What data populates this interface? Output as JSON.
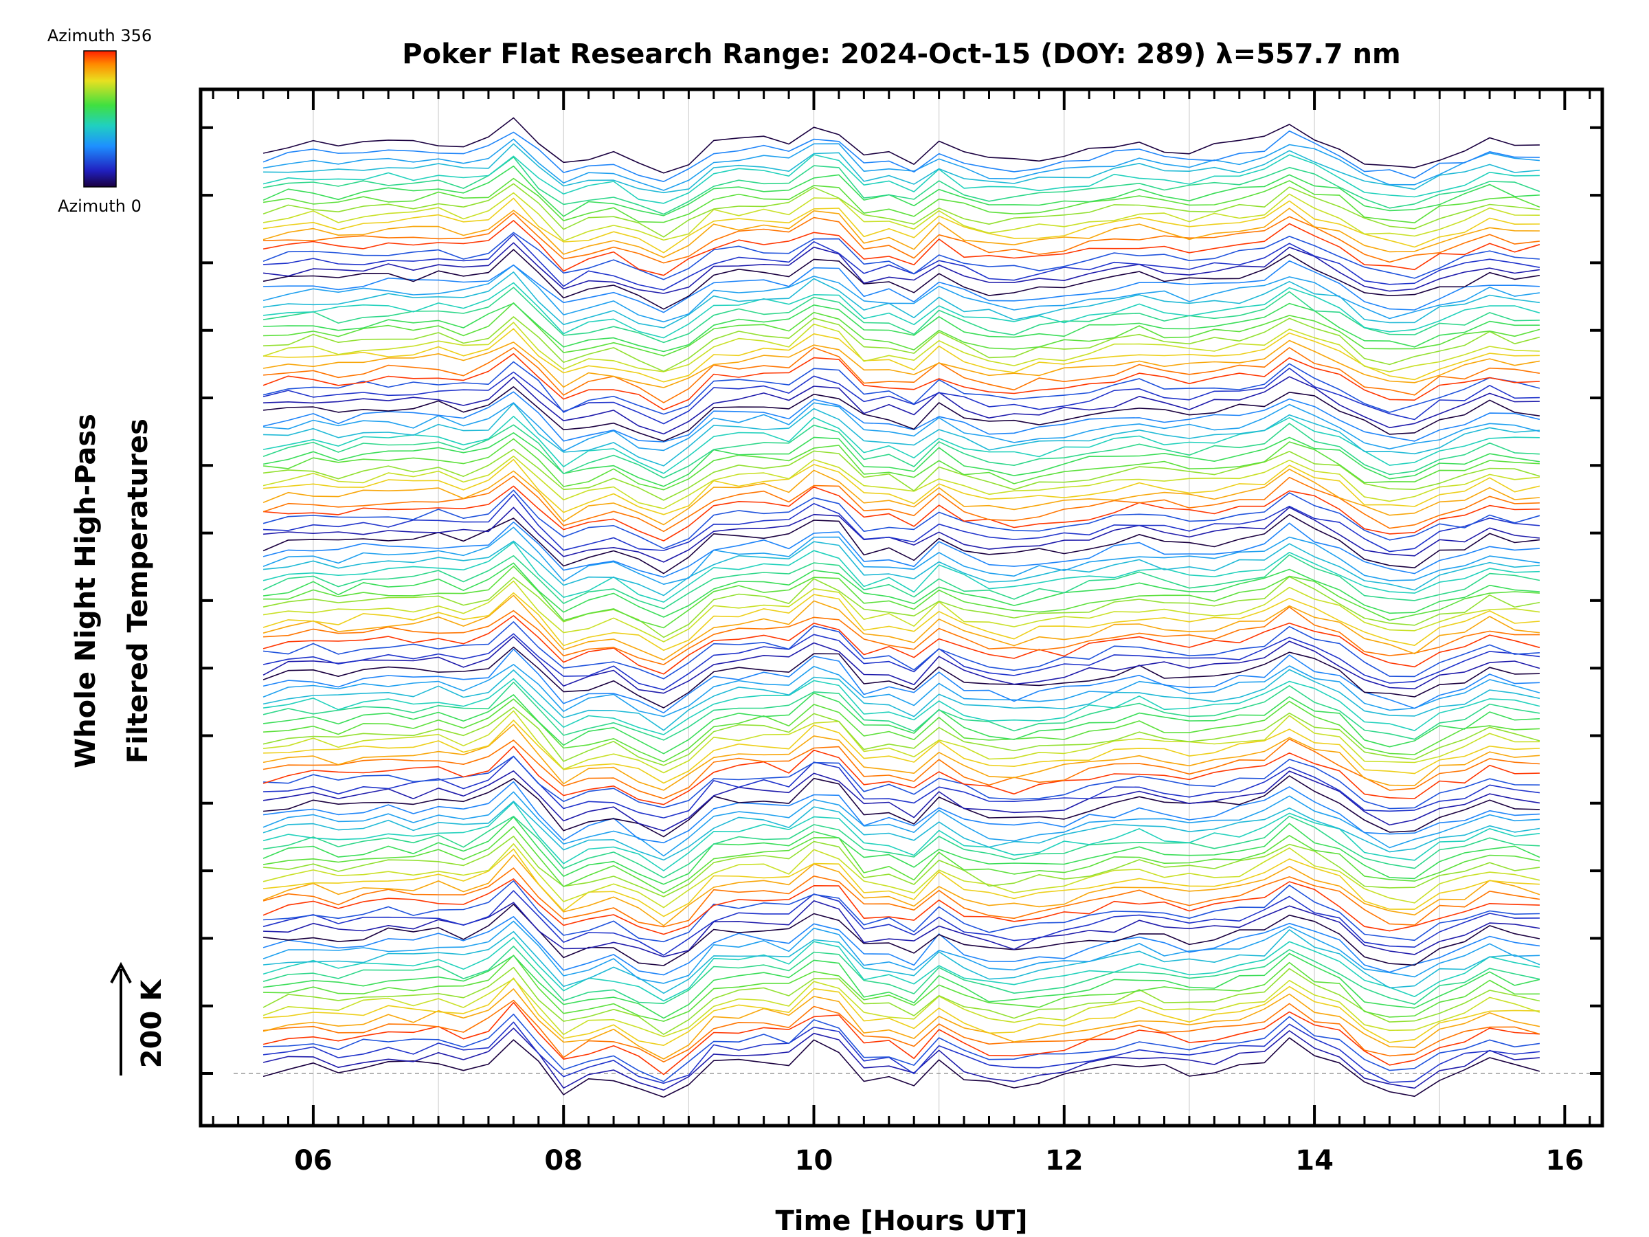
{
  "chart_data": {
    "type": "line",
    "title": "Poker Flat Research Range: 2024-Oct-15 (DOY: 289) λ=557.7 nm",
    "xlabel": "Time [Hours UT]",
    "ylabel_line1": "Whole Night High-Pass",
    "ylabel_line2": "Filtered Temperatures",
    "scale_label": "200 K",
    "x_tick_labels": [
      "06",
      "08",
      "10",
      "12",
      "14",
      "16"
    ],
    "x_major_ticks": [
      6,
      8,
      10,
      12,
      14,
      16
    ],
    "xlim": [
      5.1,
      16.3
    ],
    "x_gridlines": [
      6,
      7,
      8,
      9,
      10,
      11,
      12,
      13,
      14,
      15
    ],
    "trace_time_range": [
      5.6,
      15.8
    ],
    "trace_count": 120,
    "stack_groups": 7,
    "traces_per_group": 17,
    "colorbar": {
      "label_top": "Azimuth 356",
      "label_bottom": "Azimuth 0",
      "colormap": "rainbow",
      "range": [
        0,
        356
      ]
    },
    "colors": {
      "axis": "#000000",
      "grid": "#d0d0d0",
      "baseline": "#9a9a9a"
    },
    "common_signal": {
      "times": [
        5.6,
        5.8,
        6.0,
        6.2,
        6.4,
        6.6,
        6.8,
        7.0,
        7.2,
        7.4,
        7.6,
        7.8,
        8.0,
        8.2,
        8.4,
        8.6,
        8.8,
        9.0,
        9.2,
        9.4,
        9.6,
        9.8,
        10.0,
        10.2,
        10.4,
        10.6,
        10.8,
        11.0,
        11.2,
        11.4,
        11.6,
        11.8,
        12.0,
        12.2,
        12.4,
        12.6,
        12.8,
        13.0,
        13.2,
        13.4,
        13.6,
        13.8,
        14.0,
        14.2,
        14.4,
        14.6,
        14.8,
        15.0,
        15.2,
        15.4,
        15.6,
        15.8
      ],
      "values": [
        0,
        5,
        8,
        3,
        7,
        10,
        8,
        12,
        6,
        14,
        38,
        8,
        -20,
        -10,
        -5,
        -18,
        -28,
        -14,
        10,
        12,
        14,
        10,
        30,
        24,
        -5,
        -2,
        -12,
        12,
        -2,
        -10,
        -12,
        -8,
        -5,
        0,
        5,
        10,
        5,
        2,
        4,
        8,
        14,
        32,
        18,
        8,
        -12,
        -20,
        -20,
        -6,
        0,
        12,
        6,
        4
      ]
    }
  }
}
